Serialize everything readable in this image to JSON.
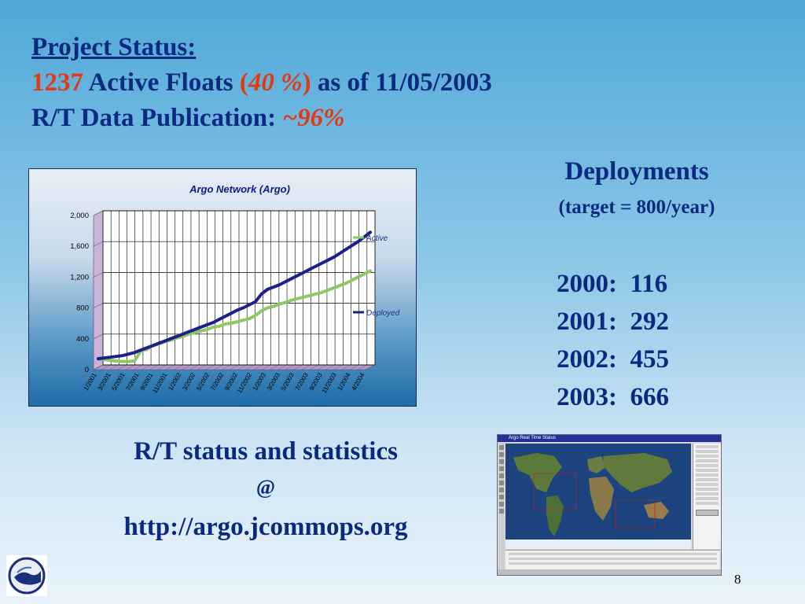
{
  "status": {
    "heading": "Project Status:",
    "active_count": "1237",
    "active_label": "Active Floats",
    "pct_open": "(",
    "pct_value": "40 %",
    "pct_close": ")",
    "as_of": "as of 11/05/2003",
    "rt_label": "R/T Data Publication:",
    "rt_value": "~96%"
  },
  "deployments": {
    "heading": "Deployments",
    "subheading": "(target = 800/year)",
    "rows": [
      "2000:  116",
      "2001:  292",
      "2002:  455",
      "2003:  666"
    ]
  },
  "rt_status": {
    "title": "R/T status and statistics",
    "at": "@",
    "url": "http://argo.jcommops.org"
  },
  "map_screenshot": {
    "title": "Argo Real Time Status"
  },
  "page_number": "8",
  "colors": {
    "text": "#0a2a80",
    "highlight": "#e23a12",
    "active_series": "#8cc864",
    "deployed_series": "#1c1f8c"
  },
  "chart_data": {
    "type": "line",
    "title": "Argo Network (Argo)",
    "x_tick_labels": [
      "1/2001",
      "3/2001",
      "5/2001",
      "7/2001",
      "9/2001",
      "11/2001",
      "1/2002",
      "3/2002",
      "5/2002",
      "7/2002",
      "9/2002",
      "11/2002",
      "1/2003",
      "3/2003",
      "5/2003",
      "7/2003",
      "9/2003",
      "11/2003",
      "1/2004",
      "4/2004"
    ],
    "y_ticks": [
      0,
      400,
      800,
      1200,
      1600,
      2000
    ],
    "y_tick_labels": [
      "0",
      "400",
      "800",
      "1,200",
      "1,600",
      "2,000"
    ],
    "ylim": [
      0,
      2000
    ],
    "grid": true,
    "legend": "right",
    "series": [
      {
        "name": "Active",
        "color": "#8cc864",
        "values": [
          50,
          50,
          40,
          30,
          25,
          25,
          30,
          160,
          180,
          230,
          250,
          280,
          300,
          330,
          350,
          380,
          400,
          420,
          440,
          470,
          480,
          510,
          520,
          540,
          560,
          580,
          620,
          680,
          720,
          740,
          770,
          790,
          820,
          840,
          860,
          880,
          900,
          920,
          950,
          980,
          1010,
          1040,
          1080,
          1120,
          1160,
          1200
        ]
      },
      {
        "name": "Deployed",
        "color": "#1c1f8c",
        "values": [
          60,
          70,
          80,
          90,
          100,
          120,
          140,
          170,
          200,
          230,
          260,
          290,
          320,
          350,
          380,
          410,
          440,
          470,
          500,
          530,
          570,
          610,
          650,
          690,
          720,
          760,
          800,
          900,
          960,
          990,
          1020,
          1060,
          1100,
          1140,
          1180,
          1220,
          1260,
          1300,
          1340,
          1380,
          1430,
          1480,
          1530,
          1580,
          1640,
          1700
        ]
      }
    ]
  }
}
